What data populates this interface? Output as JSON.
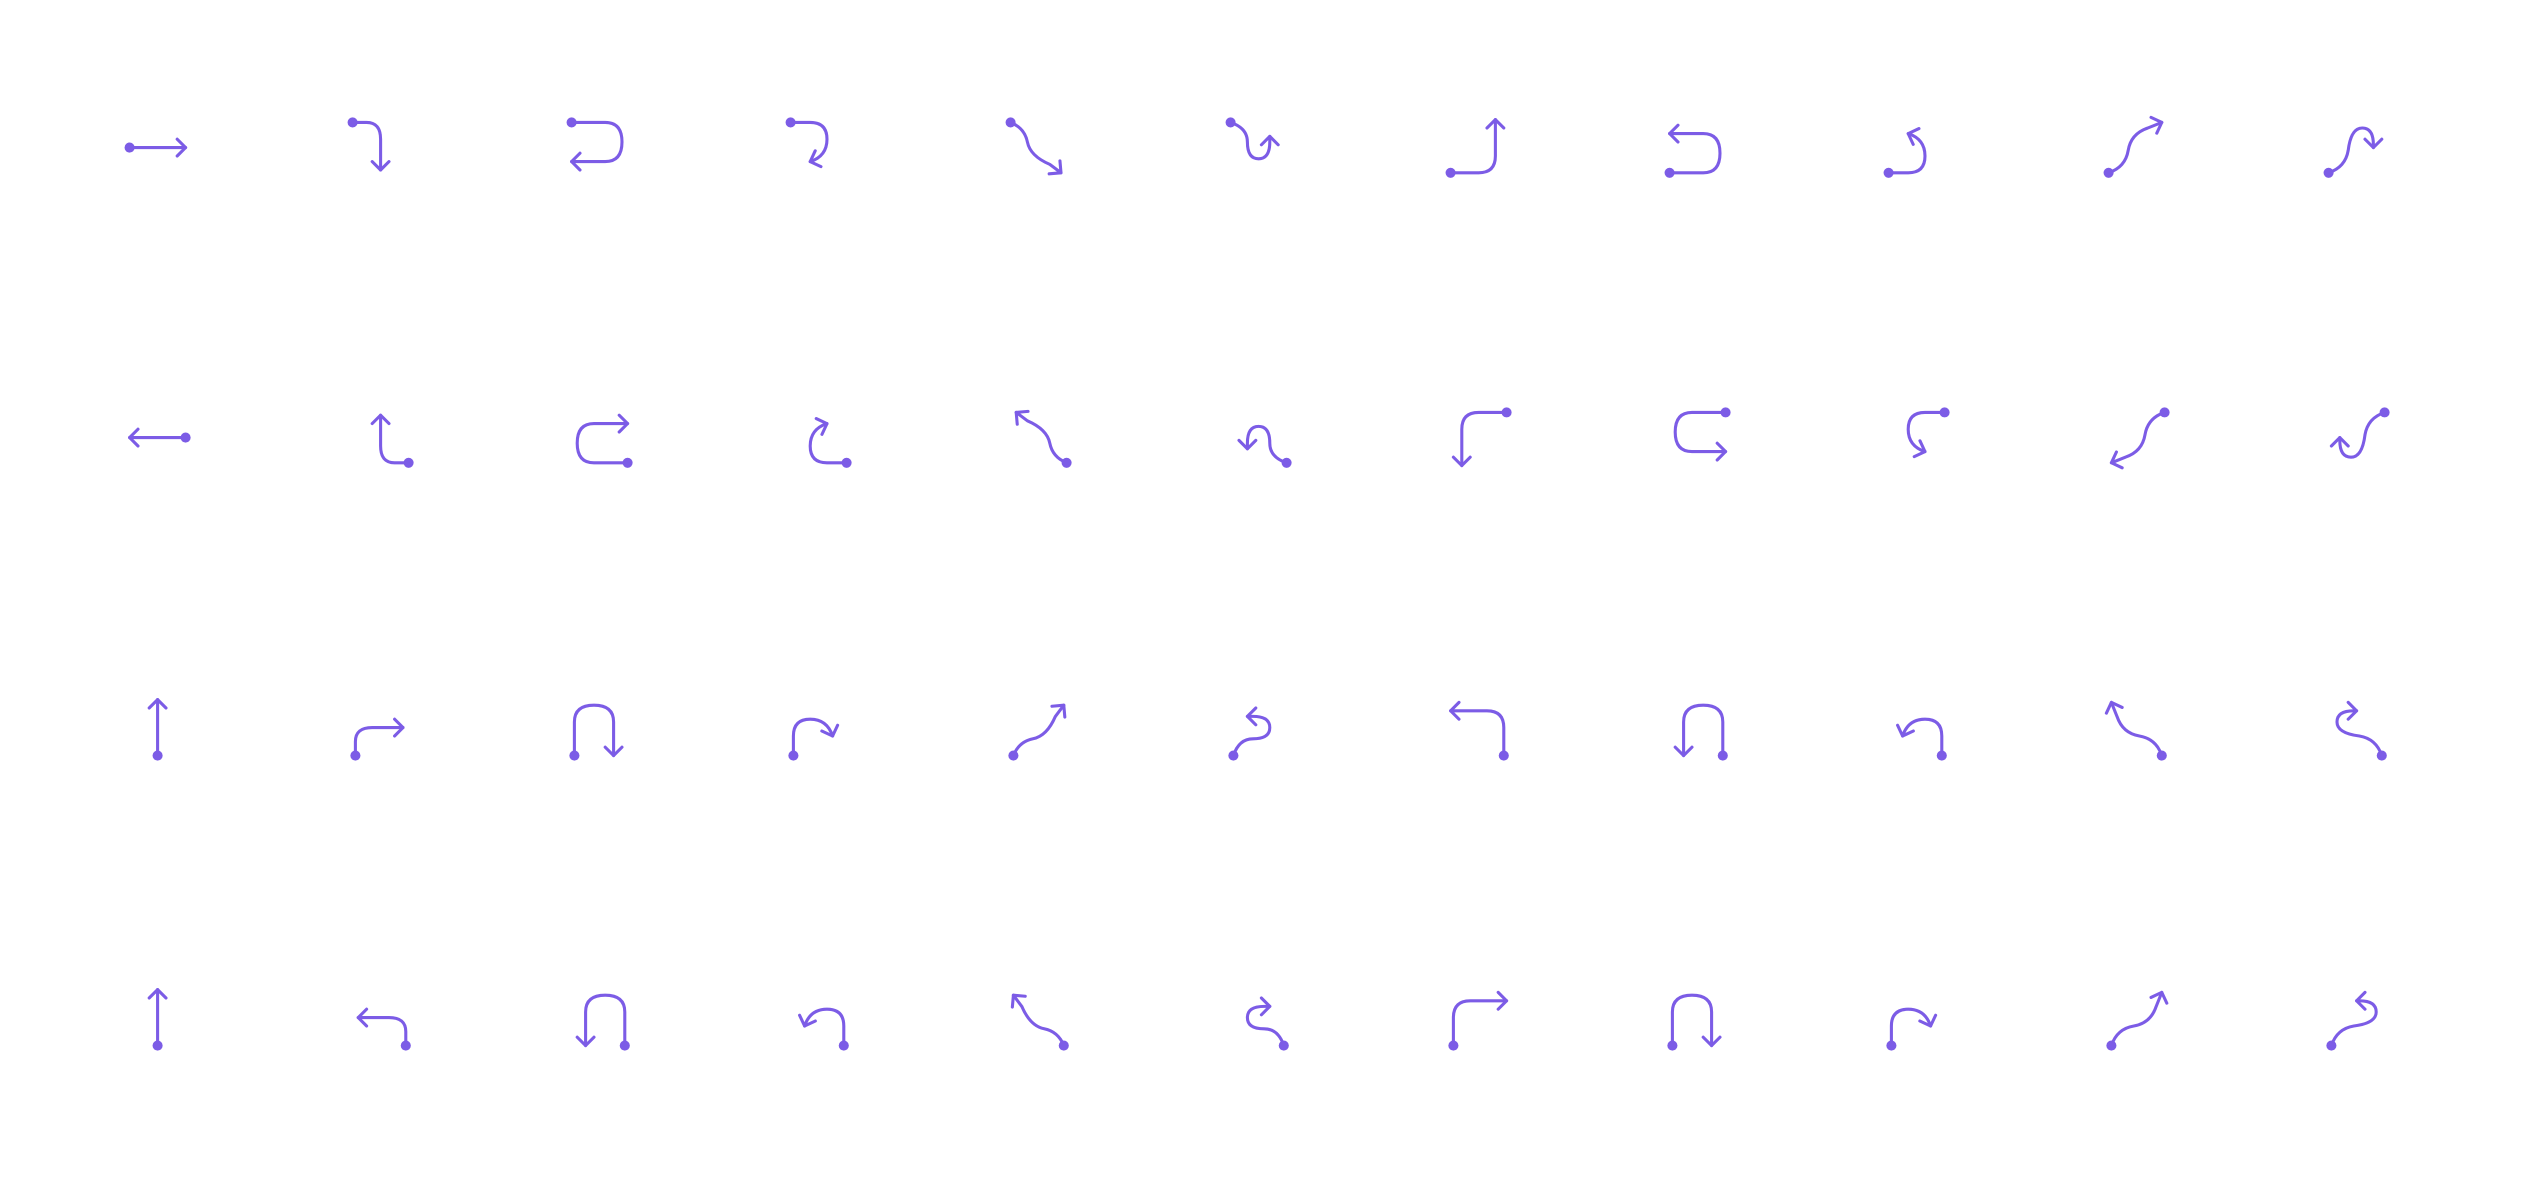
{
  "theme": {
    "stroke_color": "#7c5ce6",
    "background": "#ffffff"
  },
  "icon_set": {
    "rows": [
      [
        "arrow-right-from-dot-icon",
        "turn-right-down-from-dot-icon",
        "u-turn-left-from-dot-icon",
        "loop-left-down-from-dot-icon",
        "curve-down-right-from-dot-icon",
        "wave-up-from-dot-icon",
        "turn-up-from-dot-icon",
        "u-turn-back-from-dot-icon",
        "loop-back-from-dot-icon",
        "curve-up-right-from-dot-icon",
        "wave-down-from-dot-icon"
      ],
      [
        "arrow-left-from-dot-icon",
        "turn-left-down-from-dot-icon",
        "u-turn-right-from-dot-icon",
        "loop-right-down-from-dot-icon",
        "curve-down-left-from-dot-icon",
        "wave-left-up-from-dot-icon",
        "turn-left-up-from-dot-icon",
        "u-turn-right-back-from-dot-icon",
        "loop-right-back-from-dot-icon",
        "curve-up-left-from-dot-icon",
        "wave-left-down-from-dot-icon"
      ],
      [
        "arrow-up-from-dot-icon",
        "turn-up-right-from-dot-icon",
        "u-turn-down-from-dot-icon",
        "loop-down-right-from-dot-icon",
        "curve-up-right-from-dot-icon",
        "wave-up-left-from-dot-icon",
        "turn-up-left-from-dot-icon",
        "u-turn-down-left-from-dot-icon",
        "loop-down-left-from-dot-icon",
        "curve-up-left-from-dot-icon",
        "wave-up-left-alt-from-dot-icon"
      ],
      [
        "arrow-down-from-dot-icon",
        "turn-down-right-from-dot-icon",
        "u-turn-up-from-dot-icon",
        "loop-up-right-from-dot-icon",
        "curve-down-right-alt-from-dot-icon",
        "wave-down-left-from-dot-icon",
        "turn-down-left-from-dot-icon",
        "u-turn-up-left-from-dot-icon",
        "loop-up-left-from-dot-icon",
        "curve-down-left-alt-from-dot-icon",
        "wave-down-right-from-dot-icon"
      ]
    ]
  }
}
